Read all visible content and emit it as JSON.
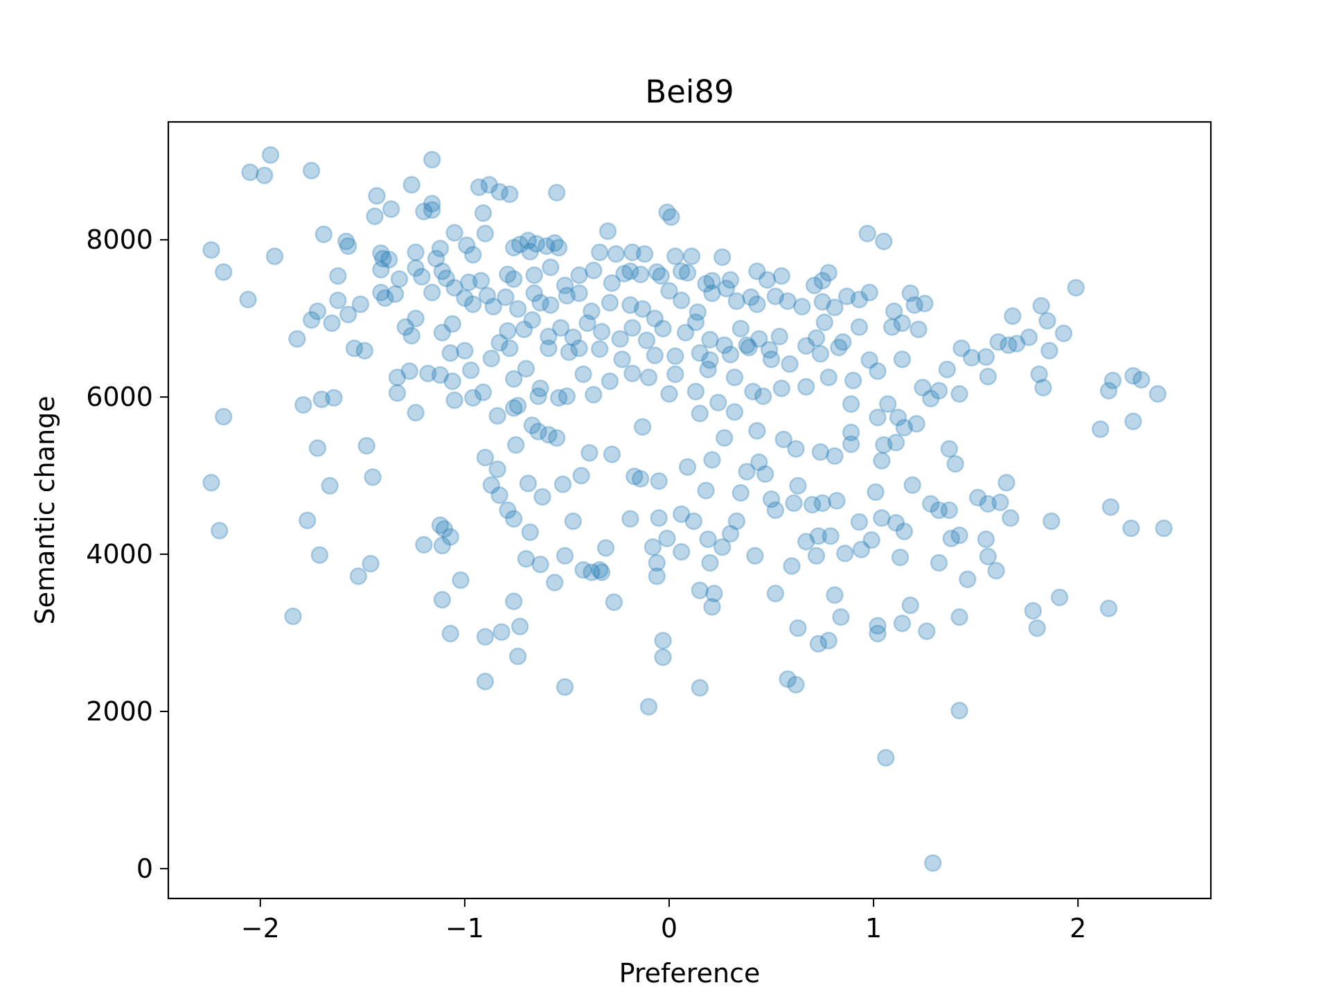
{
  "chart_data": {
    "type": "scatter",
    "title": "Bei89",
    "xlabel": "Preference",
    "ylabel": "Semantic change",
    "xlim": [
      -2.45,
      2.65
    ],
    "ylim": [
      -380,
      9500
    ],
    "xticks": [
      -2,
      -1,
      0,
      1,
      2
    ],
    "xtick_labels": [
      "−2",
      "−1",
      "0",
      "1",
      "2"
    ],
    "yticks": [
      0,
      2000,
      4000,
      6000,
      8000
    ],
    "ytick_labels": [
      "0",
      "2000",
      "4000",
      "6000",
      "8000"
    ],
    "grid": false,
    "legend": "none",
    "marker_color": "#1f77b4",
    "marker_alpha": 0.3,
    "points": [
      [
        -1.95,
        9080
      ],
      [
        -2.05,
        8860
      ],
      [
        -1.98,
        8820
      ],
      [
        -1.75,
        8880
      ],
      [
        -1.16,
        9020
      ],
      [
        -0.93,
        8670
      ],
      [
        -0.88,
        8700
      ],
      [
        -0.83,
        8610
      ],
      [
        -0.78,
        8580
      ],
      [
        -0.55,
        8600
      ],
      [
        -1.43,
        8560
      ],
      [
        -1.26,
        8700
      ],
      [
        -1.36,
        8390
      ],
      [
        -1.44,
        8300
      ],
      [
        -1.2,
        8360
      ],
      [
        -1.16,
        8460
      ],
      [
        -1.16,
        8380
      ],
      [
        -0.91,
        8340
      ],
      [
        -0.01,
        8350
      ],
      [
        0.01,
        8290
      ],
      [
        -0.3,
        8110
      ],
      [
        0.97,
        8080
      ],
      [
        1.05,
        7980
      ],
      [
        -1.69,
        8070
      ],
      [
        -1.05,
        8090
      ],
      [
        -0.9,
        8080
      ],
      [
        -0.69,
        7990
      ],
      [
        -0.65,
        7950
      ],
      [
        -0.56,
        7960
      ],
      [
        -2.24,
        7870
      ],
      [
        -1.93,
        7790
      ],
      [
        -1.58,
        7980
      ],
      [
        -1.57,
        7920
      ],
      [
        -1.41,
        7830
      ],
      [
        -1.4,
        7760
      ],
      [
        -1.37,
        7750
      ],
      [
        -1.24,
        7840
      ],
      [
        -1.12,
        7890
      ],
      [
        -1.14,
        7760
      ],
      [
        -0.99,
        7930
      ],
      [
        -0.96,
        7810
      ],
      [
        -0.76,
        7900
      ],
      [
        -0.73,
        7940
      ],
      [
        -0.68,
        7850
      ],
      [
        -0.6,
        7920
      ],
      [
        -0.54,
        7900
      ],
      [
        -0.34,
        7840
      ],
      [
        -0.26,
        7820
      ],
      [
        -0.18,
        7840
      ],
      [
        -0.12,
        7820
      ],
      [
        0.03,
        7790
      ],
      [
        0.11,
        7790
      ],
      [
        0.26,
        7780
      ],
      [
        -2.18,
        7590
      ],
      [
        -1.62,
        7540
      ],
      [
        -1.41,
        7620
      ],
      [
        -1.41,
        7330
      ],
      [
        -1.39,
        7260
      ],
      [
        -1.32,
        7500
      ],
      [
        -1.24,
        7640
      ],
      [
        -1.21,
        7530
      ],
      [
        -1.11,
        7600
      ],
      [
        -1.09,
        7510
      ],
      [
        -1.05,
        7390
      ],
      [
        -0.98,
        7460
      ],
      [
        -0.92,
        7480
      ],
      [
        -0.79,
        7560
      ],
      [
        -0.76,
        7500
      ],
      [
        -0.66,
        7550
      ],
      [
        -0.58,
        7650
      ],
      [
        -0.51,
        7420
      ],
      [
        -0.44,
        7550
      ],
      [
        -0.37,
        7610
      ],
      [
        -0.28,
        7450
      ],
      [
        -0.22,
        7570
      ],
      [
        -0.19,
        7600
      ],
      [
        -0.14,
        7560
      ],
      [
        -0.06,
        7590
      ],
      [
        -0.04,
        7540
      ],
      [
        0.06,
        7600
      ],
      [
        0.09,
        7580
      ],
      [
        0.18,
        7440
      ],
      [
        0.21,
        7480
      ],
      [
        0.3,
        7490
      ],
      [
        0.43,
        7600
      ],
      [
        0.48,
        7490
      ],
      [
        0.55,
        7540
      ],
      [
        0.71,
        7420
      ],
      [
        0.75,
        7480
      ],
      [
        0.78,
        7580
      ],
      [
        -2.06,
        7240
      ],
      [
        -1.72,
        7090
      ],
      [
        -1.62,
        7230
      ],
      [
        -1.57,
        7050
      ],
      [
        -1.51,
        7180
      ],
      [
        -1.34,
        7310
      ],
      [
        -1.24,
        7000
      ],
      [
        -1.16,
        7330
      ],
      [
        -1.11,
        6820
      ],
      [
        -1.0,
        7260
      ],
      [
        -0.96,
        7180
      ],
      [
        -0.89,
        7290
      ],
      [
        -0.86,
        7150
      ],
      [
        -0.8,
        7270
      ],
      [
        -0.74,
        7120
      ],
      [
        -0.66,
        7320
      ],
      [
        -0.63,
        7200
      ],
      [
        -0.58,
        7170
      ],
      [
        -0.5,
        7290
      ],
      [
        -0.44,
        7320
      ],
      [
        -0.38,
        7090
      ],
      [
        -0.29,
        7200
      ],
      [
        -0.19,
        7170
      ],
      [
        -0.13,
        7120
      ],
      [
        -0.07,
        7000
      ],
      [
        0.0,
        7350
      ],
      [
        0.06,
        7230
      ],
      [
        0.14,
        7080
      ],
      [
        0.21,
        7320
      ],
      [
        0.28,
        7380
      ],
      [
        0.33,
        7220
      ],
      [
        0.4,
        7270
      ],
      [
        0.43,
        7180
      ],
      [
        0.52,
        7280
      ],
      [
        0.58,
        7220
      ],
      [
        0.65,
        7150
      ],
      [
        0.75,
        7210
      ],
      [
        0.81,
        7140
      ],
      [
        0.87,
        7280
      ],
      [
        0.93,
        7240
      ],
      [
        0.98,
        7330
      ],
      [
        1.1,
        7090
      ],
      [
        1.18,
        7320
      ],
      [
        1.2,
        7170
      ],
      [
        1.25,
        7190
      ],
      [
        1.99,
        7390
      ],
      [
        1.68,
        7030
      ],
      [
        1.82,
        7160
      ],
      [
        -1.75,
        6980
      ],
      [
        -1.65,
        6940
      ],
      [
        -1.29,
        6890
      ],
      [
        -1.26,
        6780
      ],
      [
        -1.06,
        6930
      ],
      [
        -0.83,
        6690
      ],
      [
        -0.79,
        6840
      ],
      [
        -0.71,
        6860
      ],
      [
        -0.67,
        6980
      ],
      [
        -0.59,
        6770
      ],
      [
        -0.53,
        6880
      ],
      [
        -0.47,
        6760
      ],
      [
        -0.4,
        6940
      ],
      [
        -0.33,
        6830
      ],
      [
        -0.24,
        6740
      ],
      [
        -0.18,
        6880
      ],
      [
        -0.11,
        6720
      ],
      [
        -0.03,
        6870
      ],
      [
        0.08,
        6820
      ],
      [
        0.13,
        6950
      ],
      [
        0.2,
        6730
      ],
      [
        0.27,
        6660
      ],
      [
        0.35,
        6870
      ],
      [
        0.38,
        6660
      ],
      [
        0.44,
        6740
      ],
      [
        0.49,
        6600
      ],
      [
        0.54,
        6770
      ],
      [
        0.67,
        6650
      ],
      [
        0.72,
        6750
      ],
      [
        0.76,
        6950
      ],
      [
        0.85,
        6700
      ],
      [
        0.93,
        6890
      ],
      [
        1.09,
        6890
      ],
      [
        1.14,
        6940
      ],
      [
        1.22,
        6860
      ],
      [
        1.7,
        6680
      ],
      [
        1.76,
        6760
      ],
      [
        1.85,
        6970
      ],
      [
        1.93,
        6810
      ],
      [
        -1.82,
        6740
      ],
      [
        -1.54,
        6620
      ],
      [
        -1.49,
        6590
      ],
      [
        -1.07,
        6560
      ],
      [
        -1.0,
        6590
      ],
      [
        -0.87,
        6490
      ],
      [
        -0.78,
        6620
      ],
      [
        -0.59,
        6620
      ],
      [
        -0.49,
        6570
      ],
      [
        -0.44,
        6620
      ],
      [
        -0.34,
        6610
      ],
      [
        -0.23,
        6480
      ],
      [
        -0.07,
        6530
      ],
      [
        0.03,
        6520
      ],
      [
        0.15,
        6560
      ],
      [
        0.2,
        6470
      ],
      [
        0.3,
        6540
      ],
      [
        0.39,
        6630
      ],
      [
        0.5,
        6480
      ],
      [
        0.59,
        6420
      ],
      [
        0.74,
        6550
      ],
      [
        0.83,
        6630
      ],
      [
        0.98,
        6470
      ],
      [
        1.14,
        6480
      ],
      [
        1.36,
        6350
      ],
      [
        1.43,
        6620
      ],
      [
        1.48,
        6500
      ],
      [
        1.55,
        6510
      ],
      [
        1.61,
        6700
      ],
      [
        1.66,
        6660
      ],
      [
        1.86,
        6590
      ],
      [
        -1.33,
        6250
      ],
      [
        -1.27,
        6330
      ],
      [
        -1.18,
        6300
      ],
      [
        -1.12,
        6280
      ],
      [
        -1.06,
        6200
      ],
      [
        -0.97,
        6340
      ],
      [
        -0.76,
        6230
      ],
      [
        -0.7,
        6360
      ],
      [
        -0.63,
        6110
      ],
      [
        -0.42,
        6290
      ],
      [
        -0.29,
        6200
      ],
      [
        -0.18,
        6300
      ],
      [
        -0.1,
        6250
      ],
      [
        0.03,
        6290
      ],
      [
        0.13,
        6070
      ],
      [
        0.19,
        6350
      ],
      [
        0.32,
        6250
      ],
      [
        0.41,
        6070
      ],
      [
        0.46,
        6010
      ],
      [
        0.55,
        6110
      ],
      [
        0.67,
        6130
      ],
      [
        0.78,
        6250
      ],
      [
        0.9,
        6210
      ],
      [
        1.02,
        6330
      ],
      [
        1.24,
        6120
      ],
      [
        1.32,
        6080
      ],
      [
        1.42,
        6040
      ],
      [
        1.56,
        6260
      ],
      [
        1.81,
        6290
      ],
      [
        2.17,
        6210
      ],
      [
        2.27,
        6270
      ],
      [
        2.31,
        6220
      ],
      [
        2.39,
        6040
      ],
      [
        2.15,
        6080
      ],
      [
        -1.79,
        5900
      ],
      [
        -1.7,
        5970
      ],
      [
        -1.64,
        5990
      ],
      [
        -1.33,
        6050
      ],
      [
        -1.24,
        5800
      ],
      [
        -1.05,
        5960
      ],
      [
        -0.96,
        5990
      ],
      [
        -0.91,
        6060
      ],
      [
        -0.84,
        5760
      ],
      [
        -0.74,
        5890
      ],
      [
        -0.64,
        6010
      ],
      [
        -0.54,
        5990
      ],
      [
        -0.5,
        6010
      ],
      [
        -0.37,
        6030
      ],
      [
        0.0,
        6040
      ],
      [
        0.15,
        5790
      ],
      [
        0.24,
        5930
      ],
      [
        0.32,
        5810
      ],
      [
        0.89,
        5910
      ],
      [
        1.07,
        5910
      ],
      [
        1.12,
        5740
      ],
      [
        1.28,
        5980
      ],
      [
        1.83,
        6120
      ],
      [
        -2.18,
        5750
      ],
      [
        -0.76,
        5860
      ],
      [
        -0.67,
        5640
      ],
      [
        -0.64,
        5560
      ],
      [
        -0.59,
        5520
      ],
      [
        -0.55,
        5480
      ],
      [
        -0.75,
        5390
      ],
      [
        -0.13,
        5620
      ],
      [
        0.43,
        5570
      ],
      [
        0.56,
        5460
      ],
      [
        0.62,
        5340
      ],
      [
        0.74,
        5300
      ],
      [
        0.81,
        5250
      ],
      [
        0.89,
        5400
      ],
      [
        0.89,
        5550
      ],
      [
        1.02,
        5740
      ],
      [
        1.05,
        5390
      ],
      [
        1.11,
        5420
      ],
      [
        1.15,
        5610
      ],
      [
        1.21,
        5660
      ],
      [
        2.11,
        5590
      ],
      [
        2.27,
        5690
      ],
      [
        -1.72,
        5350
      ],
      [
        -1.48,
        5380
      ],
      [
        -0.9,
        5230
      ],
      [
        -0.39,
        5290
      ],
      [
        -0.28,
        5270
      ],
      [
        -0.43,
        5000
      ],
      [
        0.09,
        5110
      ],
      [
        0.21,
        5200
      ],
      [
        0.27,
        5480
      ],
      [
        0.38,
        5050
      ],
      [
        0.44,
        5170
      ],
      [
        0.47,
        5020
      ],
      [
        1.04,
        5190
      ],
      [
        1.37,
        5340
      ],
      [
        1.4,
        5150
      ],
      [
        -2.24,
        4910
      ],
      [
        -1.45,
        4980
      ],
      [
        -1.66,
        4870
      ],
      [
        -0.84,
        5080
      ],
      [
        -0.87,
        4880
      ],
      [
        -0.83,
        4750
      ],
      [
        -0.69,
        4900
      ],
      [
        -0.62,
        4730
      ],
      [
        -0.52,
        4890
      ],
      [
        -0.17,
        4990
      ],
      [
        -0.14,
        4960
      ],
      [
        -0.05,
        4930
      ],
      [
        0.18,
        4810
      ],
      [
        0.35,
        4780
      ],
      [
        0.5,
        4700
      ],
      [
        0.63,
        4870
      ],
      [
        0.7,
        4630
      ],
      [
        0.75,
        4650
      ],
      [
        0.82,
        4680
      ],
      [
        1.01,
        4790
      ],
      [
        1.19,
        4880
      ],
      [
        1.28,
        4640
      ],
      [
        1.37,
        4560
      ],
      [
        1.51,
        4720
      ],
      [
        1.56,
        4640
      ],
      [
        1.62,
        4660
      ],
      [
        1.65,
        4910
      ],
      [
        2.16,
        4600
      ],
      [
        -1.77,
        4430
      ],
      [
        -2.2,
        4300
      ],
      [
        -1.12,
        4370
      ],
      [
        -1.1,
        4320
      ],
      [
        -1.07,
        4220
      ],
      [
        -0.79,
        4560
      ],
      [
        -0.76,
        4450
      ],
      [
        -0.68,
        4280
      ],
      [
        -0.47,
        4420
      ],
      [
        -0.19,
        4450
      ],
      [
        -0.05,
        4460
      ],
      [
        0.06,
        4510
      ],
      [
        0.12,
        4420
      ],
      [
        0.19,
        4190
      ],
      [
        0.26,
        4090
      ],
      [
        0.3,
        4260
      ],
      [
        0.33,
        4420
      ],
      [
        0.52,
        4560
      ],
      [
        0.61,
        4650
      ],
      [
        0.67,
        4160
      ],
      [
        0.73,
        4230
      ],
      [
        0.79,
        4230
      ],
      [
        0.86,
        4010
      ],
      [
        0.93,
        4410
      ],
      [
        0.99,
        4180
      ],
      [
        1.04,
        4460
      ],
      [
        1.11,
        4400
      ],
      [
        1.15,
        4290
      ],
      [
        1.32,
        4560
      ],
      [
        1.42,
        4240
      ],
      [
        1.55,
        4190
      ],
      [
        1.67,
        4460
      ],
      [
        1.87,
        4420
      ],
      [
        2.26,
        4330
      ],
      [
        2.42,
        4330
      ],
      [
        -1.71,
        3990
      ],
      [
        -1.2,
        4120
      ],
      [
        -1.11,
        4110
      ],
      [
        -0.7,
        3940
      ],
      [
        -0.63,
        3870
      ],
      [
        -0.51,
        3980
      ],
      [
        -0.42,
        3800
      ],
      [
        -0.33,
        3770
      ],
      [
        -0.31,
        4080
      ],
      [
        -0.08,
        4090
      ],
      [
        -0.06,
        3890
      ],
      [
        -0.01,
        4200
      ],
      [
        0.06,
        4030
      ],
      [
        0.2,
        3890
      ],
      [
        0.42,
        3980
      ],
      [
        0.6,
        3850
      ],
      [
        0.72,
        3980
      ],
      [
        0.94,
        4060
      ],
      [
        1.13,
        3960
      ],
      [
        1.38,
        4200
      ],
      [
        1.46,
        3680
      ],
      [
        1.56,
        3970
      ],
      [
        1.6,
        3790
      ],
      [
        -1.52,
        3720
      ],
      [
        -1.46,
        3880
      ],
      [
        -1.02,
        3670
      ],
      [
        -0.56,
        3640
      ],
      [
        -0.38,
        3770
      ],
      [
        -0.34,
        3800
      ],
      [
        -0.06,
        3720
      ],
      [
        0.15,
        3540
      ],
      [
        0.22,
        3500
      ],
      [
        0.52,
        3500
      ],
      [
        0.81,
        3480
      ],
      [
        -1.11,
        3420
      ],
      [
        -0.76,
        3400
      ],
      [
        -0.27,
        3390
      ],
      [
        1.26,
        3020
      ],
      [
        1.32,
        3890
      ],
      [
        1.18,
        3350
      ],
      [
        1.42,
        3200
      ],
      [
        1.78,
        3280
      ],
      [
        1.91,
        3450
      ],
      [
        2.15,
        3310
      ],
      [
        -1.84,
        3210
      ],
      [
        -1.07,
        2990
      ],
      [
        -0.9,
        2950
      ],
      [
        -0.82,
        3010
      ],
      [
        -0.73,
        3080
      ],
      [
        -0.74,
        2700
      ],
      [
        0.21,
        3330
      ],
      [
        0.63,
        3060
      ],
      [
        0.73,
        2860
      ],
      [
        0.78,
        2900
      ],
      [
        0.84,
        3200
      ],
      [
        1.02,
        3090
      ],
      [
        1.02,
        2990
      ],
      [
        1.14,
        3120
      ],
      [
        1.8,
        3060
      ],
      [
        -0.03,
        2900
      ],
      [
        -0.03,
        2690
      ],
      [
        -0.9,
        2380
      ],
      [
        -0.51,
        2310
      ],
      [
        -0.1,
        2060
      ],
      [
        0.15,
        2300
      ],
      [
        0.58,
        2410
      ],
      [
        0.62,
        2340
      ],
      [
        1.42,
        2010
      ],
      [
        1.06,
        1410
      ],
      [
        1.29,
        70
      ]
    ]
  }
}
